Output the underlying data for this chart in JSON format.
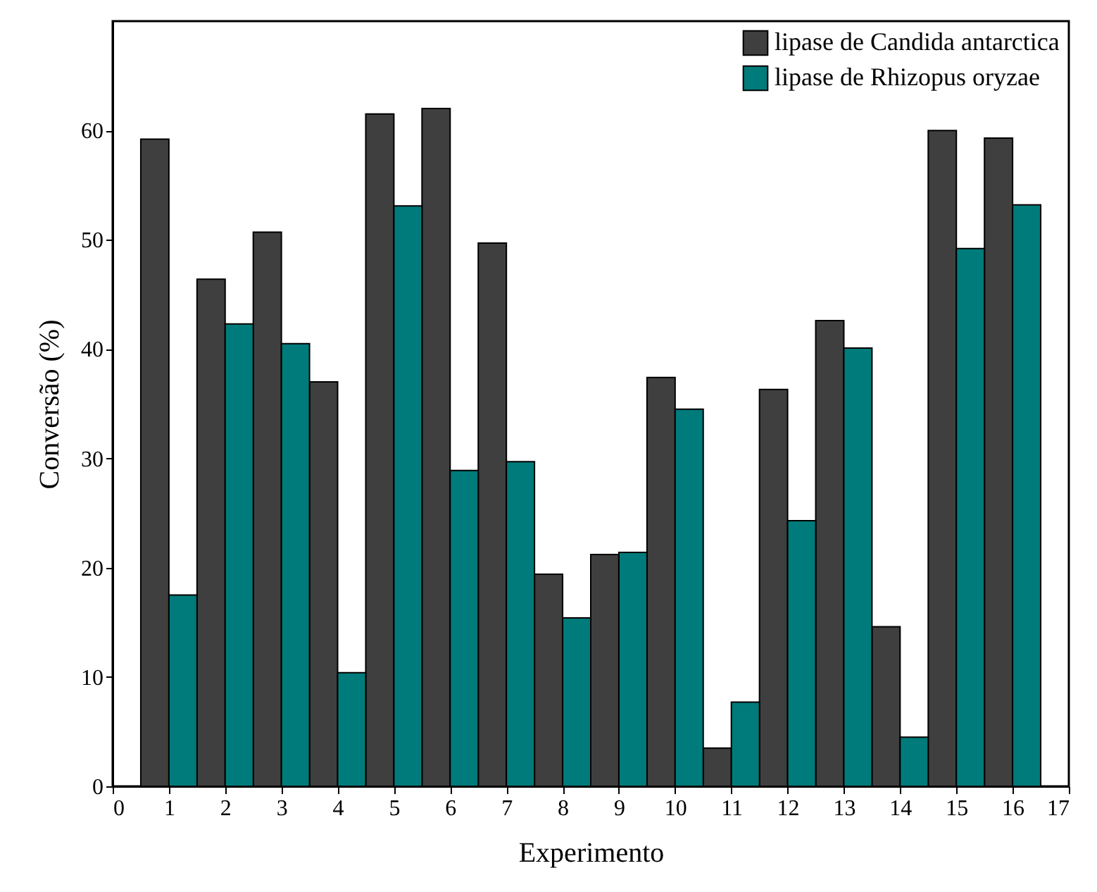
{
  "chart_data": {
    "type": "bar",
    "xlabel": "Experimento",
    "ylabel": "Conversão (%)",
    "x": [
      1,
      2,
      3,
      4,
      5,
      6,
      7,
      8,
      9,
      10,
      11,
      12,
      13,
      14,
      15,
      16
    ],
    "xlim": [
      0,
      17
    ],
    "xticks": [
      0,
      1,
      2,
      3,
      4,
      5,
      6,
      7,
      8,
      9,
      10,
      11,
      12,
      13,
      14,
      15,
      16,
      17
    ],
    "ylim": [
      0,
      70
    ],
    "yticks": [
      0,
      10,
      20,
      30,
      40,
      50,
      60
    ],
    "series": [
      {
        "name": "lipase de Candida antarctica",
        "color": "#3f3f3f",
        "values": [
          59.2,
          46.4,
          50.7,
          37.0,
          61.5,
          62.0,
          49.7,
          19.4,
          21.2,
          37.4,
          3.5,
          36.3,
          42.6,
          14.6,
          60.0,
          59.3
        ]
      },
      {
        "name": "lipase de Rhizopus oryzae",
        "color": "#007b7b",
        "values": [
          17.5,
          42.3,
          40.5,
          10.4,
          53.1,
          28.9,
          29.7,
          15.4,
          21.4,
          34.5,
          7.7,
          24.3,
          40.1,
          4.5,
          49.2,
          53.2
        ]
      }
    ],
    "grid": false,
    "legend": "top right"
  }
}
